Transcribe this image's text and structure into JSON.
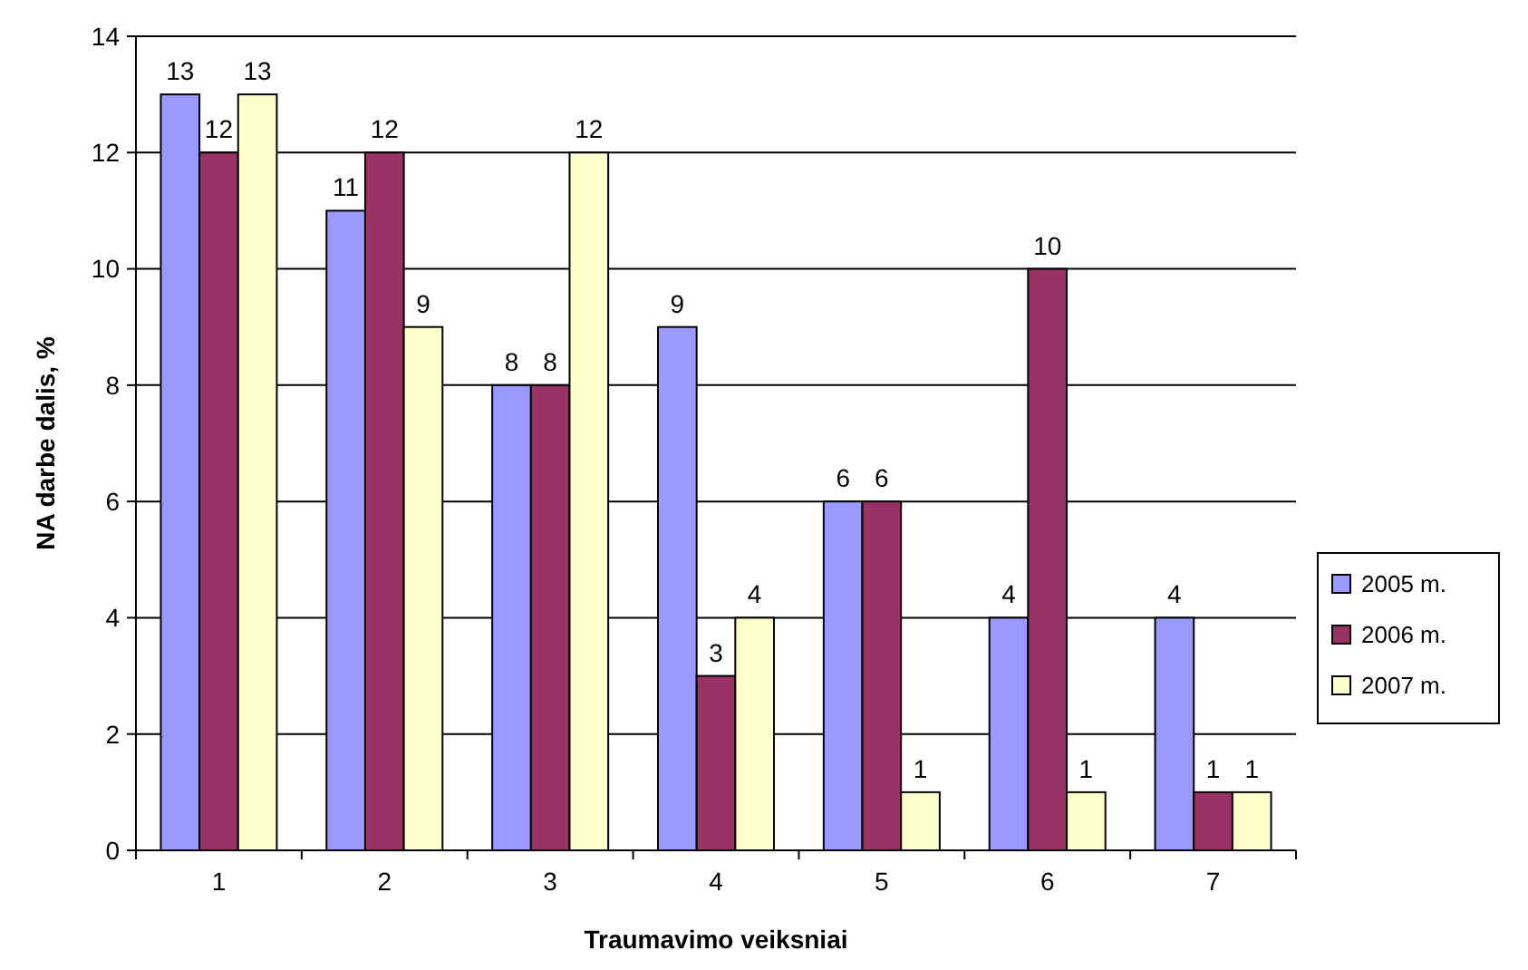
{
  "chart_data": {
    "type": "bar",
    "xlabel": "Traumavimo veiksniai",
    "ylabel": "NA darbe dalis, %",
    "categories": [
      "1",
      "2",
      "3",
      "4",
      "5",
      "6",
      "7"
    ],
    "series": [
      {
        "name": "2005 m.",
        "color": "#9999ff",
        "values": [
          13,
          11,
          8,
          9,
          6,
          4,
          4
        ]
      },
      {
        "name": "2006 m.",
        "color": "#993366",
        "values": [
          12,
          12,
          8,
          3,
          6,
          10,
          1
        ]
      },
      {
        "name": "2007 m.",
        "color": "#ffffcc",
        "values": [
          13,
          9,
          12,
          4,
          1,
          1,
          1
        ]
      }
    ],
    "ylim": [
      0,
      14
    ],
    "yticks": [
      0,
      2,
      4,
      6,
      8,
      10,
      12,
      14
    ],
    "grid": "y",
    "legend": "right",
    "data_labels": true
  }
}
